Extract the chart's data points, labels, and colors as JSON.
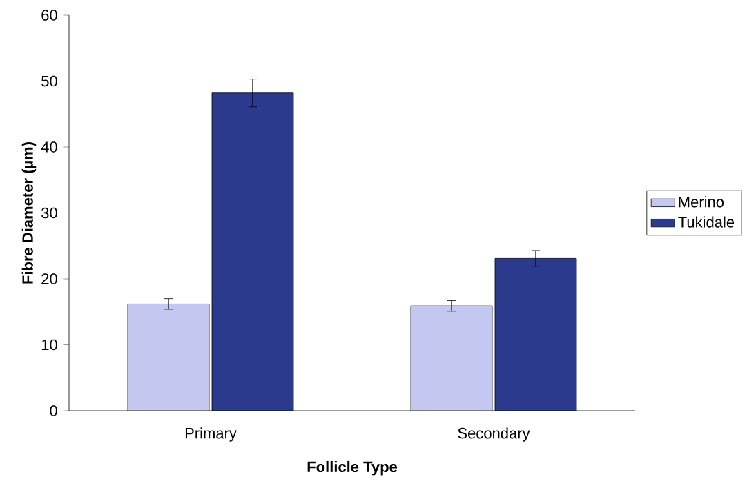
{
  "chart_data": {
    "type": "bar",
    "xlabel": "Follicle Type",
    "ylabel": "Fibre Diameter (µm)",
    "categories": [
      "Primary",
      "Secondary"
    ],
    "series": [
      {
        "name": "Merino",
        "color": "#c4c8f0",
        "values": [
          16.2,
          15.9
        ],
        "errors": [
          0.8,
          0.8
        ]
      },
      {
        "name": "Tukidale",
        "color": "#2b3a8c",
        "values": [
          48.2,
          23.1
        ],
        "errors": [
          2.1,
          1.2
        ]
      }
    ],
    "ylim": [
      0,
      60
    ],
    "yticks": [
      0,
      10,
      20,
      30,
      40,
      50,
      60
    ],
    "grid": false,
    "legend": "right"
  }
}
